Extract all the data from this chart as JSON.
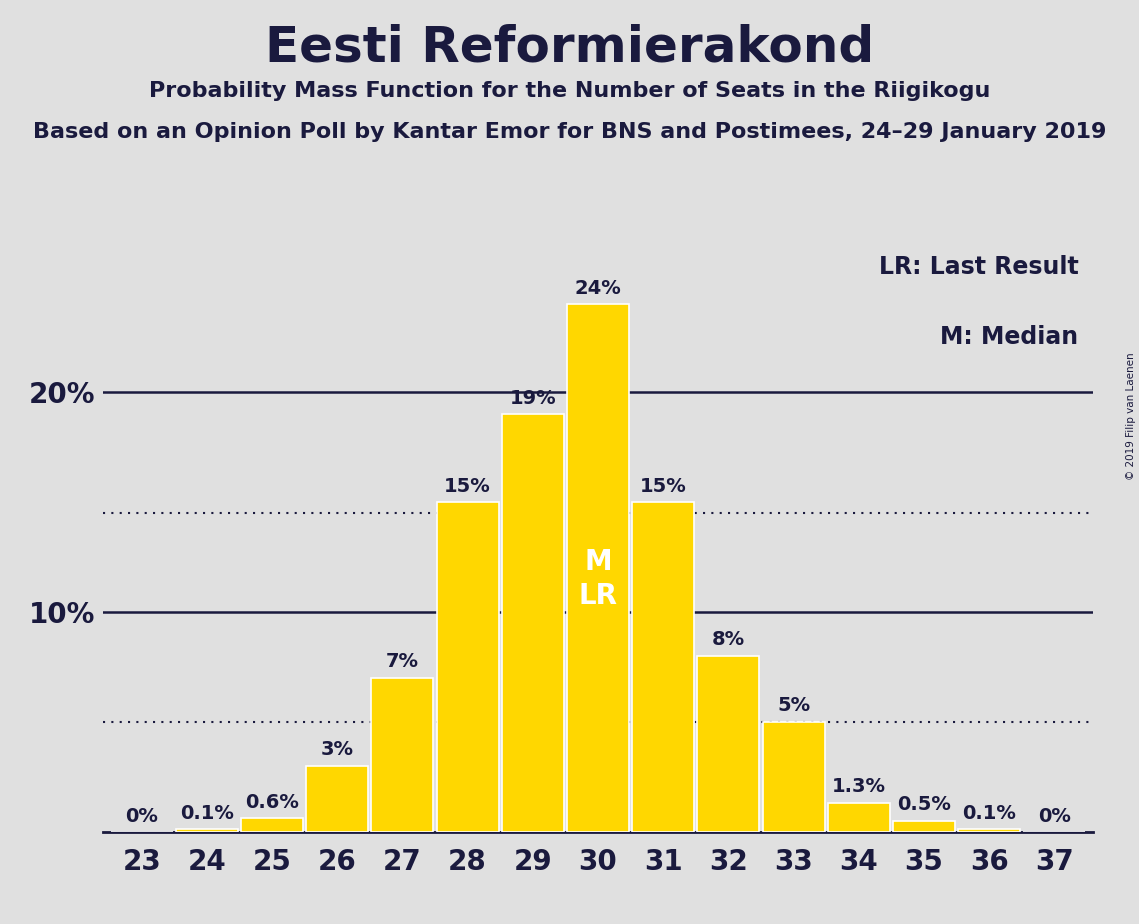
{
  "title": "Eesti Reformierakond",
  "subtitle1": "Probability Mass Function for the Number of Seats in the Riigikogu",
  "subtitle2": "Based on an Opinion Poll by Kantar Emor for BNS and Postimees, 24–29 January 2019",
  "copyright": "© 2019 Filip van Laenen",
  "seats": [
    23,
    24,
    25,
    26,
    27,
    28,
    29,
    30,
    31,
    32,
    33,
    34,
    35,
    36,
    37
  ],
  "probabilities": [
    0.0,
    0.1,
    0.6,
    3.0,
    7.0,
    15.0,
    19.0,
    24.0,
    15.0,
    8.0,
    5.0,
    1.3,
    0.5,
    0.1,
    0.0
  ],
  "labels": [
    "0%",
    "0.1%",
    "0.6%",
    "3%",
    "7%",
    "15%",
    "19%",
    "24%",
    "15%",
    "8%",
    "5%",
    "1.3%",
    "0.5%",
    "0.1%",
    "0%"
  ],
  "bar_color": "#FFD700",
  "bar_edge_color": "#FFFFFF",
  "background_color": "#E0E0E0",
  "text_color": "#1a1a3e",
  "median_seat": 30,
  "last_result_seat": 30,
  "dotted_line_1": 14.5,
  "dotted_line_2": 5.0,
  "solid_line_1": 20.0,
  "solid_line_2": 10.0,
  "ylim_max": 26.5,
  "legend_lr": "LR: Last Result",
  "legend_m": "M: Median",
  "title_fontsize": 36,
  "subtitle_fontsize": 16,
  "label_fontsize": 14,
  "tick_fontsize": 20,
  "ytick_fontsize": 20
}
